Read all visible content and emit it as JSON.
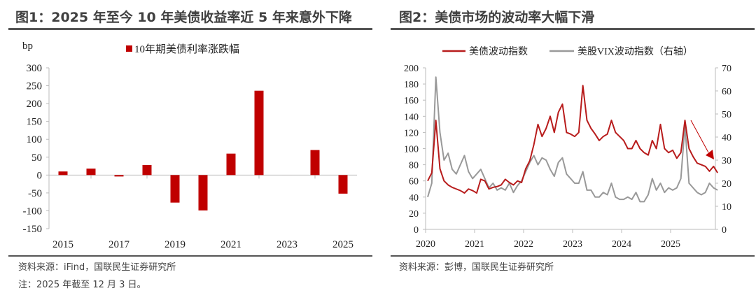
{
  "left": {
    "title": "图1：2025 年至今 10 年美债收益率近 5 年来意外下降",
    "source": "资料来源：iFind，国联民生证券研究所",
    "note": "注：2025 年截至 12 月 3 日。"
  },
  "right": {
    "title": "图2：美债市场的波动率大幅下滑",
    "source": "资料来源：彭博，国联民生证券研究所"
  },
  "chart_data": [
    {
      "type": "bar",
      "unit_label": "bp",
      "legend_position": "top",
      "categories": [
        "2015",
        "2016",
        "2017",
        "2018",
        "2019",
        "2020",
        "2021",
        "2022",
        "2023",
        "2024",
        "2025"
      ],
      "tick_labels": [
        "2015",
        "2017",
        "2019",
        "2021",
        "2023",
        "2025"
      ],
      "series": [
        {
          "name": "10年期美债利率涨跌幅",
          "color": "#C00000",
          "values": [
            10,
            18,
            -4,
            28,
            -77,
            -99,
            60,
            236,
            0,
            70,
            -52
          ]
        }
      ],
      "ylim": [
        -150,
        300
      ],
      "yticks": [
        300,
        250,
        200,
        150,
        100,
        50,
        0,
        -50,
        -100,
        -150
      ],
      "grid": false
    },
    {
      "type": "line",
      "legend_position": "top",
      "x_start": "2020-01",
      "x_end": "2025-12",
      "x_step": "month",
      "xticks": [
        "2020",
        "2021",
        "2022",
        "2023",
        "2024",
        "2025"
      ],
      "ylim_left": [
        0,
        200
      ],
      "yticks_left": [
        200,
        180,
        160,
        140,
        120,
        100,
        80,
        60,
        40,
        20,
        0
      ],
      "ylim_right": [
        0,
        70
      ],
      "yticks_right": [
        70,
        60,
        50,
        40,
        30,
        20,
        10,
        0
      ],
      "annotation": "downward arrow (late 2025)",
      "grid": false,
      "series": [
        {
          "name": "美债波动指数",
          "axis": "left",
          "color": "#B81C1C",
          "values": [
            60,
            70,
            135,
            75,
            60,
            55,
            52,
            50,
            48,
            45,
            50,
            48,
            45,
            62,
            60,
            50,
            52,
            53,
            55,
            62,
            58,
            55,
            60,
            58,
            75,
            85,
            105,
            130,
            115,
            125,
            140,
            120,
            145,
            155,
            120,
            118,
            115,
            120,
            178,
            135,
            125,
            118,
            110,
            115,
            118,
            135,
            120,
            115,
            110,
            100,
            100,
            110,
            100,
            95,
            92,
            110,
            100,
            130,
            100,
            95,
            98,
            88,
            95,
            135,
            100,
            90,
            82,
            80,
            78,
            72,
            78,
            70
          ]
        },
        {
          "name": "美股VIX波动指数（右轴）",
          "axis": "right",
          "color": "#999999",
          "values": [
            14,
            20,
            66,
            42,
            30,
            33,
            26,
            24,
            28,
            32,
            25,
            22,
            24,
            26,
            22,
            18,
            20,
            17,
            18,
            17,
            20,
            16,
            19,
            21,
            25,
            29,
            32,
            28,
            31,
            30,
            26,
            23,
            29,
            31,
            24,
            22,
            20,
            20,
            25,
            17,
            17,
            14,
            14,
            16,
            15,
            20,
            14,
            13,
            13,
            14,
            13,
            16,
            12,
            12,
            15,
            22,
            17,
            20,
            16,
            18,
            17,
            18,
            22,
            45,
            20,
            18,
            16,
            15,
            16,
            20,
            18,
            17
          ]
        }
      ]
    }
  ]
}
